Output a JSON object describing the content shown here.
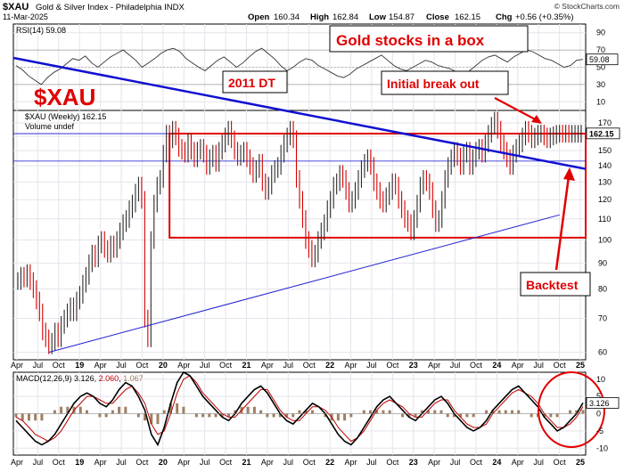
{
  "header": {
    "symbol": "$XAU",
    "name": "Gold & Silver Index - Philadelphia INDX",
    "date": "11-Mar-2025",
    "open_label": "Open",
    "open": "160.34",
    "high_label": "High",
    "high": "162.84",
    "low_label": "Low",
    "low": "154.87",
    "close_label": "Close",
    "close": "162.15",
    "chg_label": "Chg",
    "chg": "+0.56 (+0.35%)",
    "watermark": "© StockCharts.com"
  },
  "annotations": {
    "big_symbol": "$XAU",
    "title_box": "Gold stocks in a box",
    "dt": "2011 DT",
    "breakout": "Initial break out",
    "backtest": "Backtest"
  },
  "colors": {
    "price": "#000000",
    "up": "#2b2b2b",
    "down": "#d40000",
    "box": "#e00000",
    "trend_down": "#1010d0",
    "trend_up": "#2020d0",
    "annotation": "#e00000",
    "macd": "#000000",
    "signal": "#c00000",
    "hist": "#a08060",
    "rsi": "#333333"
  },
  "rsi": {
    "label": "RSI(14) 59.08",
    "value": 59.08,
    "value_label": "59.08",
    "ticks": [
      "90",
      "70",
      "50",
      "30",
      "10"
    ],
    "ticks_raw": [
      90,
      70,
      50,
      30,
      10
    ],
    "series": [
      52,
      47,
      40,
      35,
      30,
      38,
      44,
      48,
      54,
      60,
      58,
      63,
      55,
      50,
      56,
      62,
      66,
      70,
      64,
      58,
      50,
      55,
      60,
      66,
      70,
      72,
      68,
      60,
      55,
      50,
      46,
      52,
      58,
      62,
      56,
      50,
      55,
      62,
      68,
      72,
      66,
      60,
      52,
      46,
      50,
      56,
      60,
      58,
      52,
      48,
      44,
      40,
      38,
      42,
      48,
      52,
      56,
      60,
      64,
      58,
      52,
      48,
      46,
      50,
      54,
      58,
      56,
      52,
      50,
      48,
      44,
      42,
      46,
      52,
      58,
      62,
      64,
      60,
      56,
      62,
      66,
      70,
      68,
      64,
      60,
      58,
      54,
      50,
      52,
      58,
      59.08
    ]
  },
  "chart_data": {
    "type": "line",
    "title": "$XAU (Weekly) 162.15",
    "subtitle": "Volume undef",
    "x_ticks": [
      "Apr",
      "Jul",
      "Oct",
      "19",
      "Apr",
      "Jul",
      "Oct",
      "20",
      "Apr",
      "Jul",
      "Oct",
      "21",
      "Apr",
      "Jul",
      "Oct",
      "22",
      "Apr",
      "Jul",
      "Oct",
      "23",
      "Apr",
      "Jul",
      "Oct",
      "24",
      "Apr",
      "Jul",
      "Oct",
      "25"
    ],
    "y_ticks": [
      170,
      160,
      150,
      140,
      130,
      120,
      110,
      100,
      90,
      80,
      70,
      60
    ],
    "y_tick_labels": [
      "170",
      "150",
      "140",
      "130",
      "120",
      "110",
      "100",
      "90",
      "80",
      "70",
      "60"
    ],
    "ylim": [
      58,
      180
    ],
    "last_value": 162.15,
    "last_label": "162.15",
    "grid": true,
    "log_scale": true,
    "series": [
      {
        "t": [
          0,
          2,
          4,
          6,
          8,
          10,
          12,
          14,
          16,
          18,
          20,
          22,
          24,
          26,
          28,
          30,
          32,
          34,
          36,
          38,
          40,
          42,
          44,
          46,
          48,
          50,
          52,
          54,
          56,
          58,
          60,
          62,
          64,
          66,
          68,
          70,
          72,
          74,
          76,
          78,
          80,
          82,
          84,
          86,
          88,
          90,
          92,
          94,
          96,
          98,
          100,
          102,
          104,
          106,
          108,
          110,
          112,
          114,
          116,
          118,
          120,
          122,
          124,
          126,
          128,
          130,
          132,
          134,
          136,
          138,
          140,
          142,
          144,
          146,
          148,
          150,
          152,
          154,
          156,
          158,
          160,
          162,
          164,
          166,
          168,
          170,
          172,
          174,
          176,
          178,
          180,
          182,
          184,
          186,
          188,
          190,
          192,
          194,
          196,
          198,
          200,
          202,
          204,
          206,
          208,
          210,
          212,
          214,
          216,
          218,
          220,
          222,
          224,
          226,
          228,
          230,
          232,
          234,
          236,
          238,
          240,
          242,
          244,
          246,
          248,
          250,
          252,
          254,
          256,
          258,
          260,
          262,
          264,
          266,
          268,
          270,
          272,
          274,
          276,
          278,
          280,
          282,
          284,
          286,
          288,
          290,
          292,
          294,
          296,
          298,
          300,
          302,
          304,
          306,
          308,
          310,
          312,
          314,
          316,
          318,
          320,
          322,
          324,
          326,
          328,
          330,
          332,
          334,
          336,
          338,
          340,
          342,
          344,
          346,
          348,
          350,
          352,
          354,
          356,
          358,
          360,
          362,
          364
        ],
        "values": [
          83,
          85,
          84,
          86,
          83,
          80,
          76,
          72,
          66,
          64,
          62,
          63,
          66,
          64,
          68,
          70,
          72,
          74,
          72,
          76,
          78,
          82,
          85,
          90,
          94,
          92,
          98,
          100,
          96,
          94,
          98,
          96,
          100,
          104,
          108,
          110,
          115,
          118,
          124,
          128,
          120,
          70,
          64,
          100,
          118,
          128,
          132,
          148,
          162,
          158,
          165,
          160,
          152,
          150,
          148,
          156,
          150,
          145,
          150,
          152,
          148,
          140,
          145,
          148,
          142,
          150,
          155,
          160,
          165,
          158,
          150,
          146,
          148,
          150,
          145,
          140,
          135,
          138,
          142,
          130,
          125,
          128,
          135,
          138,
          140,
          148,
          155,
          160,
          165,
          158,
          132,
          120,
          110,
          100,
          96,
          92,
          94,
          100,
          104,
          108,
          115,
          120,
          128,
          130,
          135,
          132,
          125,
          118,
          120,
          125,
          132,
          138,
          142,
          145,
          140,
          130,
          125,
          120,
          118,
          122,
          125,
          130,
          128,
          120,
          115,
          110,
          108,
          104,
          110,
          118,
          128,
          132,
          130,
          125,
          115,
          108,
          110,
          120,
          132,
          140,
          145,
          150,
          146,
          140,
          148,
          150,
          140,
          145,
          150,
          152,
          148,
          155,
          162,
          168,
          172,
          165,
          155,
          150,
          145,
          140,
          148,
          152,
          155,
          160,
          165,
          162,
          158,
          160,
          162,
          162.15,
          160,
          158,
          160,
          161,
          162,
          162.15,
          162,
          162.15,
          162,
          162,
          162,
          162,
          162.15
        ]
      }
    ]
  },
  "macd": {
    "label_name": "MACD(12,26,9)",
    "v1": "3.126",
    "v2": "2.060",
    "v3": "1.067",
    "value_label": "3.126",
    "ticks": [
      "10",
      "5",
      "0",
      "-5",
      "-10"
    ],
    "ticks_raw": [
      10,
      5,
      0,
      -5,
      -10
    ],
    "macd_line": [
      -2,
      -4,
      -6,
      -8,
      -9,
      -8,
      -6,
      -3,
      0,
      3,
      5,
      6,
      5,
      3,
      2,
      4,
      7,
      9,
      8,
      5,
      1,
      -6,
      -9,
      -4,
      3,
      9,
      12,
      11,
      8,
      5,
      3,
      1,
      -1,
      -2,
      0,
      3,
      5,
      7,
      8,
      6,
      3,
      0,
      -2,
      -3,
      -1,
      1,
      3,
      2,
      0,
      -3,
      -6,
      -8,
      -9,
      -7,
      -4,
      -1,
      2,
      4,
      5,
      3,
      1,
      -1,
      -2,
      0,
      2,
      4,
      5,
      3,
      0,
      -2,
      -4,
      -5,
      -4,
      -2,
      1,
      3,
      5,
      7,
      8,
      6,
      4,
      2,
      -1,
      -3,
      -5,
      -4,
      -2,
      0,
      3.126
    ],
    "signal_line": [
      -1,
      -2,
      -4,
      -6,
      -7,
      -8,
      -7,
      -5,
      -2,
      1,
      3,
      5,
      5,
      4,
      3,
      3,
      5,
      7,
      8,
      6,
      3,
      -3,
      -6,
      -5,
      0,
      6,
      10,
      11,
      9,
      6,
      4,
      2,
      0,
      -1,
      -1,
      1,
      3,
      5,
      7,
      7,
      4,
      1,
      -1,
      -2,
      -2,
      0,
      2,
      2,
      1,
      -1,
      -4,
      -6,
      -8,
      -7,
      -5,
      -2,
      1,
      3,
      4,
      3,
      2,
      0,
      -1,
      -1,
      1,
      3,
      4,
      4,
      1,
      -1,
      -3,
      -4,
      -4,
      -3,
      0,
      2,
      4,
      6,
      7,
      6,
      5,
      3,
      0,
      -2,
      -4,
      -4,
      -3,
      -1,
      2.06
    ]
  }
}
